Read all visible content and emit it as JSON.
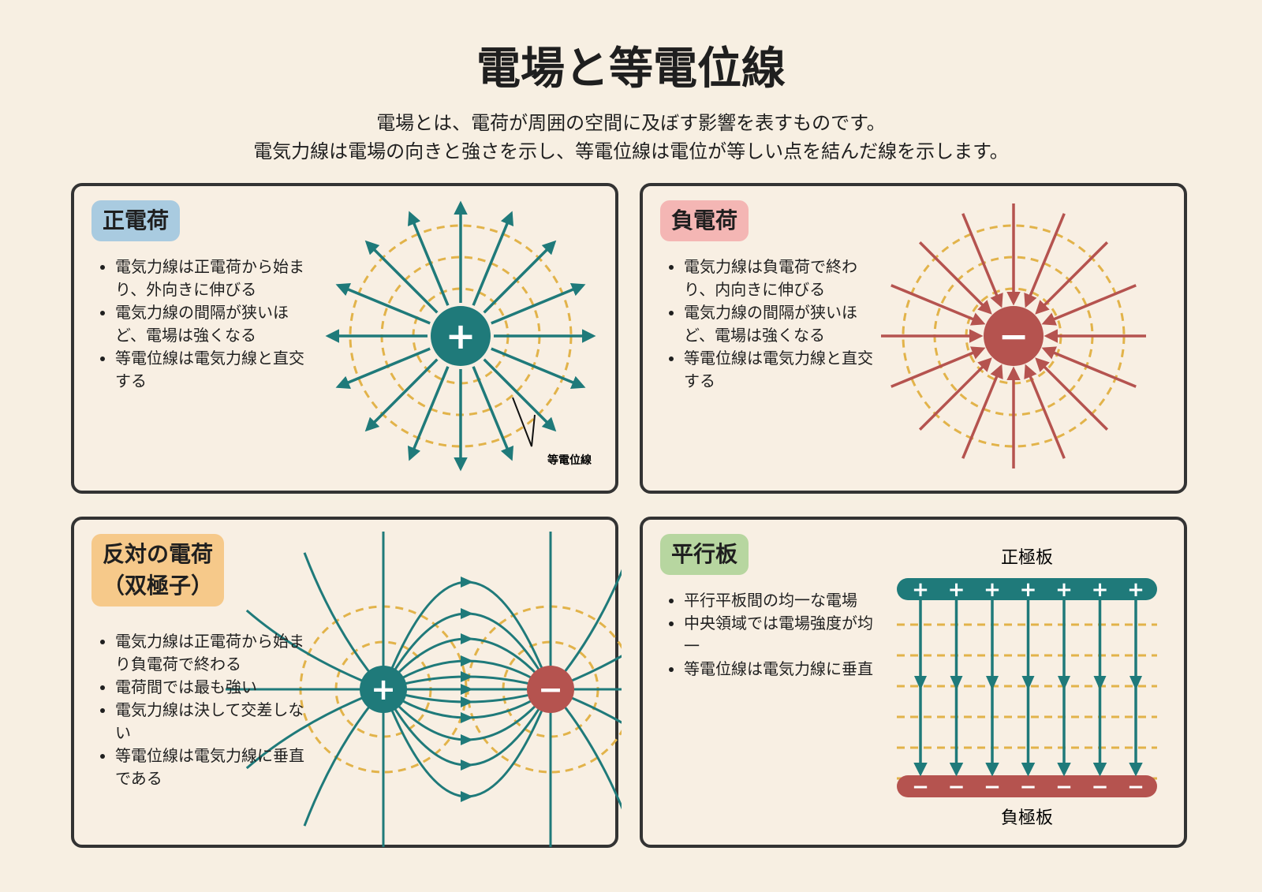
{
  "title": "電場と等電位線",
  "subtitle": [
    "電場とは、電荷が周囲の空間に及ぼす影響を表すものです。",
    "電気力線は電場の向きと強さを示し、等電位線は電位が等しい点を結んだ線を示します。"
  ],
  "panels": [
    {
      "heading": [
        "正電荷"
      ],
      "bullets": [
        "電気力線は正電荷から始まり、外向きに伸びる",
        "電気力線の間隔が狭いほど、電場は強くなる",
        "等電位線は電気力線と直交する"
      ],
      "symbol": "+",
      "label": "等電位線"
    },
    {
      "heading": [
        "負電荷"
      ],
      "bullets": [
        "電気力線は負電荷で終わり、内向きに伸びる",
        "電気力線の間隔が狭いほど、電場は強くなる",
        "等電位線は電気力線と直交する"
      ],
      "symbol": "−"
    },
    {
      "heading": [
        "反対の電荷",
        "（双極子）"
      ],
      "bullets": [
        "電気力線は正電荷から始まり負電荷で終わる",
        "電荷間では最も強い",
        "電気力線は決して交差しない",
        "等電位線は電気力線に垂直である"
      ],
      "symbols": [
        "+",
        "−"
      ]
    },
    {
      "heading": [
        "平行板"
      ],
      "bullets": [
        "平行平板間の均一な電場",
        "中央領域では電場強度が均一",
        "等電位線は電気力線に垂直"
      ],
      "symbols": [
        "+",
        "−"
      ],
      "labels": [
        "正極板",
        "負極板"
      ]
    }
  ]
}
